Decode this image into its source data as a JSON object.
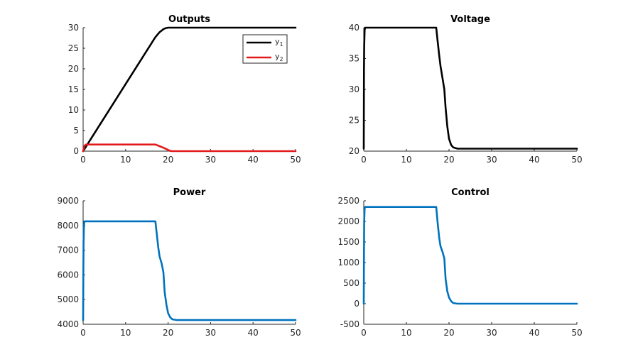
{
  "chart_data": [
    {
      "type": "line",
      "title": "Outputs",
      "xlim": [
        0,
        50
      ],
      "ylim": [
        0,
        30
      ],
      "xticks": [
        0,
        10,
        20,
        30,
        40,
        50
      ],
      "yticks": [
        0,
        5,
        10,
        15,
        20,
        25,
        30
      ],
      "grid": false,
      "legend": "top-right",
      "series": [
        {
          "name": "y1",
          "legend_base": "y",
          "legend_sub": "1",
          "color": "#000000",
          "x": [
            0,
            17,
            18,
            19,
            19.5,
            20,
            21,
            22,
            50
          ],
          "y": [
            0,
            27.7,
            28.9,
            29.7,
            29.9,
            30,
            30,
            30,
            30
          ]
        },
        {
          "name": "y2",
          "legend_base": "y",
          "legend_sub": "2",
          "color": "#e31a1c",
          "x": [
            0,
            0.3,
            0.7,
            17,
            18,
            19,
            20,
            20.5,
            21,
            50
          ],
          "y": [
            0,
            1.3,
            1.6,
            1.6,
            1.2,
            0.8,
            0.3,
            0.05,
            0,
            0
          ]
        }
      ]
    },
    {
      "type": "line",
      "title": "Voltage",
      "xlim": [
        0,
        50
      ],
      "ylim": [
        20,
        40
      ],
      "xticks": [
        0,
        10,
        20,
        30,
        40,
        50
      ],
      "yticks": [
        20,
        25,
        30,
        35,
        40
      ],
      "grid": false,
      "series": [
        {
          "color": "#000000",
          "x": [
            0,
            0.05,
            0.1,
            0.2,
            0.3,
            17,
            17.3,
            17.7,
            18,
            18.5,
            18.9,
            19.2,
            19.6,
            20,
            20.5,
            21,
            22,
            50
          ],
          "y": [
            20.4,
            33,
            37,
            39.5,
            40,
            40,
            38,
            35.5,
            33.8,
            31.7,
            30,
            27,
            24,
            22,
            21,
            20.6,
            20.4,
            20.4
          ]
        }
      ]
    },
    {
      "type": "line",
      "title": "Power",
      "xlim": [
        0,
        50
      ],
      "ylim": [
        4000,
        9000
      ],
      "xticks": [
        0,
        10,
        20,
        30,
        40,
        50
      ],
      "yticks": [
        4000,
        5000,
        6000,
        7000,
        8000,
        9000
      ],
      "grid": false,
      "series": [
        {
          "color": "#0072bd",
          "x": [
            0,
            0.05,
            0.1,
            0.2,
            0.3,
            17,
            17.3,
            17.7,
            18,
            18.5,
            18.9,
            19.2,
            19.6,
            20,
            20.5,
            21,
            22,
            50
          ],
          "y": [
            4170,
            6000,
            7300,
            8000,
            8170,
            8170,
            7700,
            7100,
            6750,
            6450,
            6100,
            5300,
            4800,
            4450,
            4280,
            4200,
            4170,
            4170
          ]
        }
      ]
    },
    {
      "type": "line",
      "title": "Control",
      "xlim": [
        0,
        50
      ],
      "ylim": [
        -500,
        2500
      ],
      "xticks": [
        0,
        10,
        20,
        30,
        40,
        50
      ],
      "yticks": [
        -500,
        0,
        500,
        1000,
        1500,
        2000,
        2500
      ],
      "grid": false,
      "series": [
        {
          "color": "#0072bd",
          "x": [
            0,
            0.05,
            0.1,
            0.2,
            0.3,
            17,
            17.3,
            17.7,
            18,
            18.5,
            18.9,
            19.2,
            19.6,
            20,
            20.5,
            21,
            22,
            50
          ],
          "y": [
            0,
            1200,
            2000,
            2300,
            2350,
            2350,
            2000,
            1600,
            1400,
            1250,
            1100,
            600,
            300,
            150,
            60,
            15,
            0,
            0
          ]
        }
      ]
    }
  ]
}
